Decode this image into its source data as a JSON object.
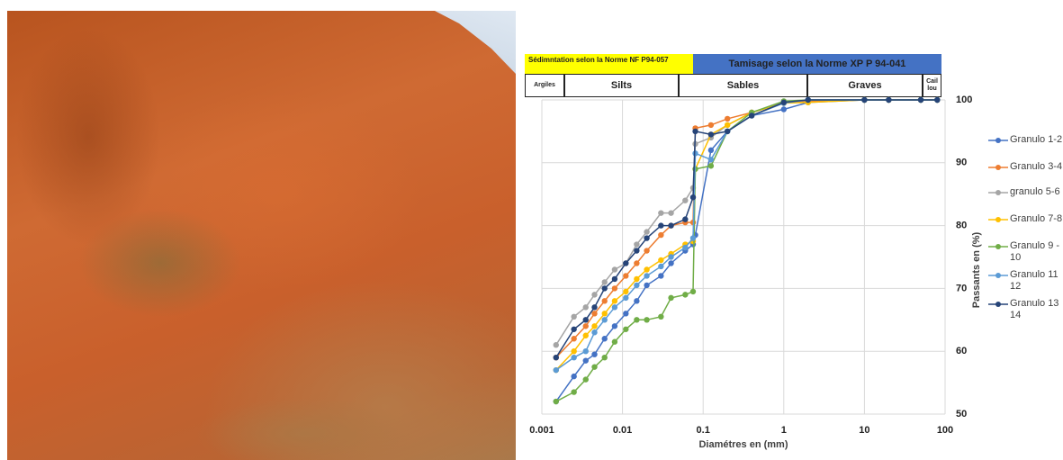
{
  "chart_data": {
    "type": "line",
    "x_label": "Diamétres en (mm)",
    "y_label": "Passants en (%)",
    "log_x": true,
    "grid": true,
    "legend": "right",
    "zones": {
      "sedimentation": "Sédimntation selon la Norme NF P94-057",
      "tamisage": "Tamisage selon la Norme  XP P 94-041",
      "classes": [
        "Argiles",
        "Silts",
        "Sables",
        "Graves",
        "Caillou"
      ]
    },
    "xlim": [
      0.001,
      100
    ],
    "xticks": [
      0.001,
      0.01,
      0.1,
      1,
      10,
      100
    ],
    "ylim": [
      50,
      100
    ],
    "yticks": [
      50,
      60,
      70,
      80,
      90,
      100
    ],
    "x": [
      0.0015,
      0.0025,
      0.0035,
      0.0045,
      0.006,
      0.008,
      0.011,
      0.015,
      0.02,
      0.03,
      0.04,
      0.06,
      0.075,
      0.08,
      0.125,
      0.2,
      0.4,
      1,
      2,
      10,
      20,
      50,
      80
    ],
    "series": [
      {
        "name": "Granulo 1-2",
        "color": "#4472c4",
        "values": [
          52,
          56,
          58.5,
          59.5,
          62,
          64,
          66,
          68,
          70.5,
          72,
          74,
          76,
          77,
          78.5,
          92,
          95,
          97.5,
          98.5,
          99.6,
          100,
          100,
          100,
          100
        ]
      },
      {
        "name": "Granulo 3-4",
        "color": "#ed7d31",
        "values": [
          59,
          62,
          64,
          66,
          68,
          70,
          72,
          74,
          76,
          78.5,
          80,
          80.5,
          80.5,
          95.5,
          96,
          97,
          98,
          99.5,
          99.8,
          100,
          100,
          100,
          100
        ]
      },
      {
        "name": "granulo 5-6",
        "color": "#a5a5a5",
        "values": [
          61,
          65.5,
          67,
          69,
          71,
          73,
          74,
          77,
          79,
          82,
          82,
          84,
          86,
          93,
          94,
          96,
          98,
          99.5,
          100,
          100,
          100,
          100,
          100
        ]
      },
      {
        "name": "Granulo 7-8",
        "color": "#ffc000",
        "values": [
          57,
          60,
          62.5,
          64,
          66,
          68,
          69.5,
          71.5,
          73,
          74.5,
          75.5,
          77,
          77.5,
          89,
          94.5,
          96,
          98,
          99.5,
          99.6,
          100,
          100,
          100,
          100
        ]
      },
      {
        "name": "Granulo 9 - 10",
        "color": "#70ad47",
        "values": [
          52,
          53.5,
          55.5,
          57.5,
          59,
          61.5,
          63.5,
          65,
          65,
          65.5,
          68.5,
          69,
          69.5,
          89,
          89.5,
          95,
          98,
          99.8,
          100,
          100,
          100,
          100,
          100
        ]
      },
      {
        "name": "Granulo 11 12",
        "color": "#5b9bd5",
        "values": [
          57,
          59,
          60,
          63,
          65,
          67,
          68.5,
          70.5,
          72,
          73.5,
          75,
          76.5,
          78,
          91.5,
          90.5,
          95,
          97.5,
          99.5,
          100,
          100,
          100,
          100,
          100
        ]
      },
      {
        "name": "Granulo 13 14",
        "color": "#264478",
        "values": [
          59,
          63.5,
          65,
          67,
          70,
          71.5,
          74,
          76,
          78,
          80,
          80,
          81,
          84.5,
          95,
          94.5,
          95,
          97.5,
          99.6,
          100,
          100,
          100,
          100,
          100
        ]
      }
    ]
  }
}
